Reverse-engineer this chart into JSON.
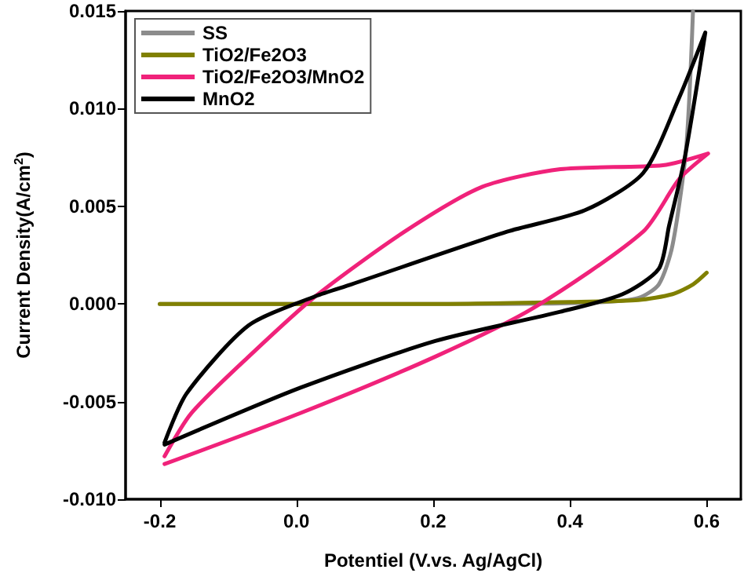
{
  "chart_data": {
    "type": "line",
    "xlabel": "Potentiel (V.vs. Ag/AgCl)",
    "ylabel": "Current Density(A/cm$^{2}$)",
    "xlim": [
      -0.25,
      0.65
    ],
    "xticks": [
      -0.2,
      {
        "value": 0,
        "label": "0.0"
      },
      0.2,
      0.4,
      0.6
    ],
    "ylim": [
      -0.01,
      0.015
    ],
    "yticks": [
      {
        "value": -0.01,
        "label": "-0.010"
      },
      -0.005,
      {
        "value": 0,
        "label": "0.000"
      },
      0.005,
      {
        "value": 0.01,
        "label": "0.010"
      },
      0.015
    ],
    "grid": false,
    "legend": "top left",
    "marker": "none",
    "line_style": "solid",
    "series": [
      {
        "name": "SS",
        "color": "#8c8c8c",
        "x": [
          -0.2,
          0.1,
          0.3,
          0.45,
          0.5,
          0.53,
          0.55,
          0.57,
          0.58
        ],
        "values": [
          0,
          0,
          0,
          0.0001,
          0.0003,
          0.001,
          0.003,
          0.008,
          0.015
        ]
      },
      {
        "name": "TiO2/Fe2O3",
        "color": "#808000",
        "x": [
          -0.2,
          0.2,
          0.4,
          0.5,
          0.55,
          0.58,
          0.6
        ],
        "values": [
          0,
          0,
          0.0001,
          0.0002,
          0.0005,
          0.001,
          0.0016
        ]
      },
      {
        "name": "TiO2/Fe2O3/MnO2",
        "color": "#f0227a",
        "x": [
          -0.193,
          0.005,
          0.203,
          0.347,
          0.507,
          0.56,
          0.602,
          0.536,
          0.386,
          0.272,
          0.158,
          0.028,
          -0.07,
          -0.154,
          -0.193
        ],
        "values": [
          -0.0082,
          -0.0056,
          -0.0027,
          -0.0002,
          0.0037,
          0.0064,
          0.0077,
          0.0071,
          0.0069,
          0.006,
          0.0037,
          0.0004,
          -0.0027,
          -0.0056,
          -0.0078
        ]
      },
      {
        "name": "MnO2",
        "color": "#000000",
        "x": [
          -0.193,
          0.005,
          0.203,
          0.386,
          0.477,
          0.53,
          0.545,
          0.568,
          0.598,
          0.559,
          0.507,
          0.422,
          0.308,
          0.08,
          0.028,
          -0.07,
          -0.161,
          -0.193
        ],
        "values": [
          -0.0072,
          -0.0043,
          -0.0019,
          -0.0004,
          0.0005,
          0.0018,
          0.004,
          0.0075,
          0.0139,
          0.0105,
          0.0067,
          0.0048,
          0.0037,
          0.001,
          0.0004,
          -0.0011,
          -0.0046,
          -0.0071
        ]
      }
    ]
  }
}
